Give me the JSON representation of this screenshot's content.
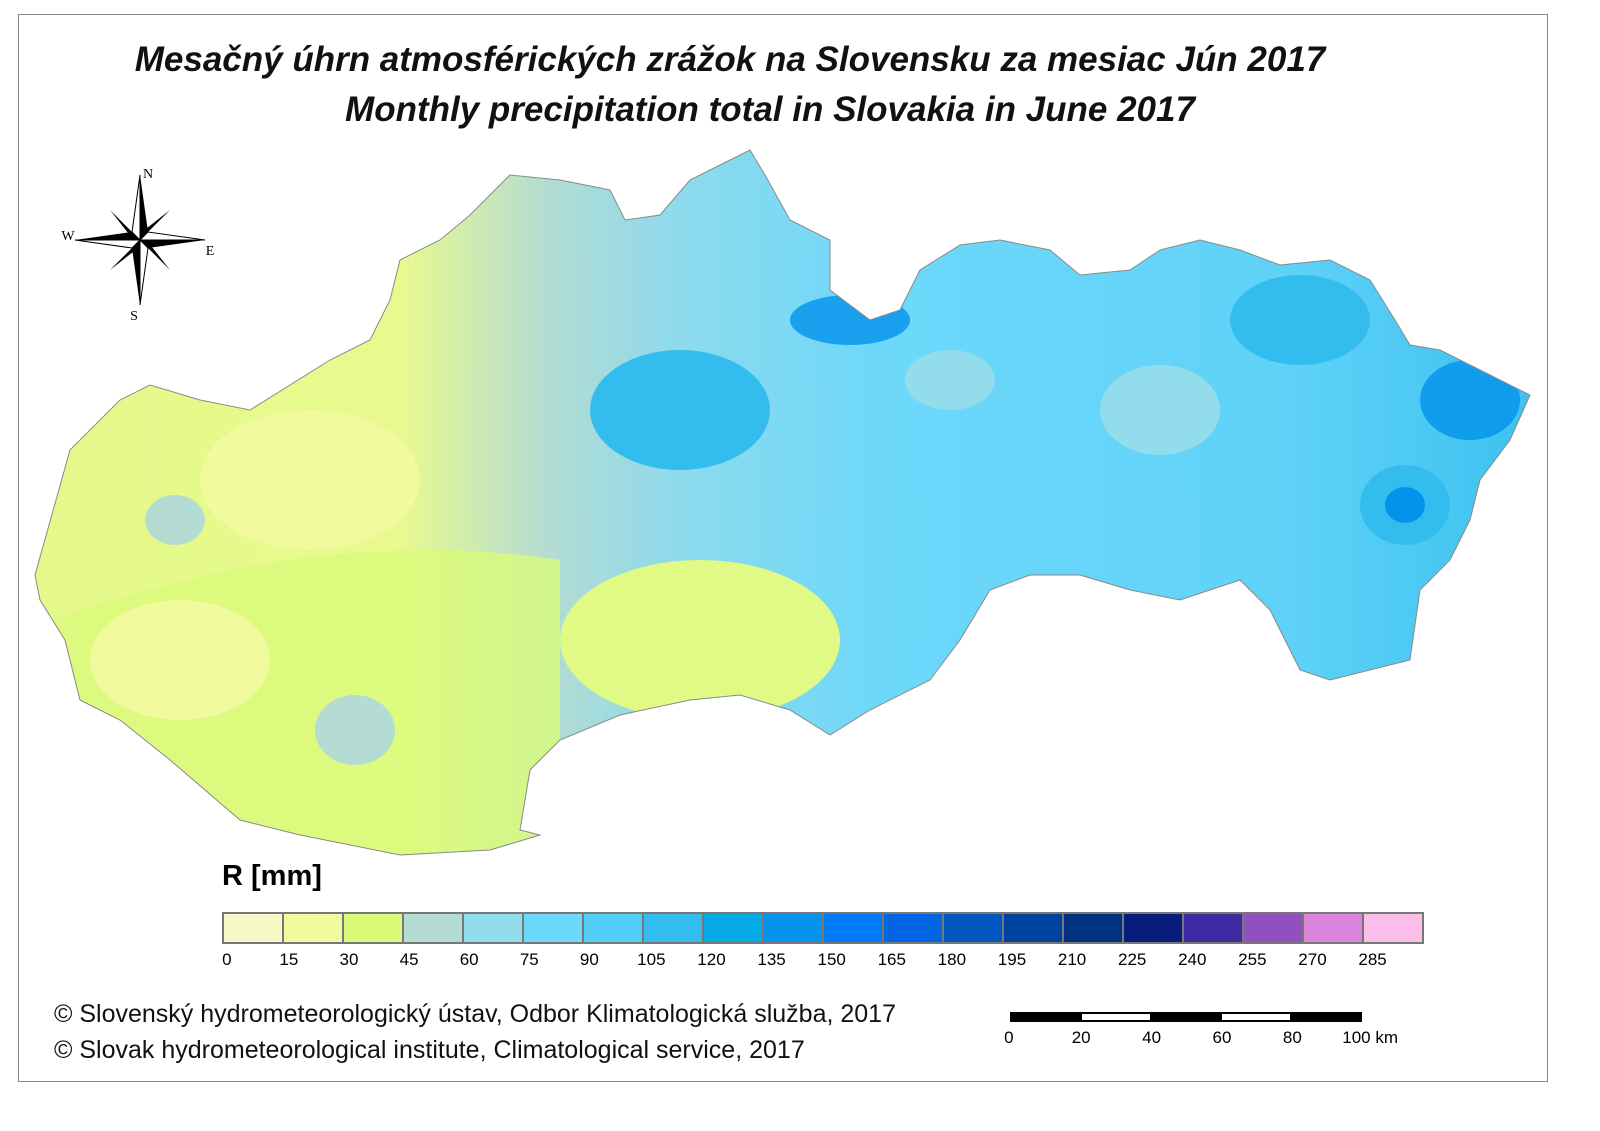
{
  "title_sk": "Mesačný úhrn atmosférických zrážok na Slovensku za mesiac Jún 2017",
  "title_en": "Monthly precipitation total in Slovakia in June 2017",
  "compass": {
    "n": "N",
    "s": "S",
    "e": "E",
    "w": "W"
  },
  "legend": {
    "title": "R [mm]",
    "ticks": [
      "0",
      "15",
      "30",
      "45",
      "60",
      "75",
      "90",
      "105",
      "120",
      "135",
      "150",
      "165",
      "180",
      "195",
      "210",
      "225",
      "240",
      "255",
      "270",
      "285"
    ],
    "colors": [
      "#f7f7c8",
      "#f1fa9c",
      "#d9fb7a",
      "#b5dcd2",
      "#93dceb",
      "#6dd8fa",
      "#52cff7",
      "#33bdee",
      "#04a9e6",
      "#0392ec",
      "#007bf7",
      "#0066e3",
      "#0057c0",
      "#00439f",
      "#003282",
      "#081d7b",
      "#3e2aa0",
      "#9150bf",
      "#d985dc",
      "#fdbee9"
    ]
  },
  "copyright": [
    "© Slovenský hydrometeorologický ústav, Odbor Klimatologická služba, 2017",
    "© Slovak hydrometeorological institute, Climatological service, 2017"
  ],
  "scale": {
    "labels": [
      "0",
      "20",
      "40",
      "60",
      "80",
      "100 km"
    ]
  }
}
